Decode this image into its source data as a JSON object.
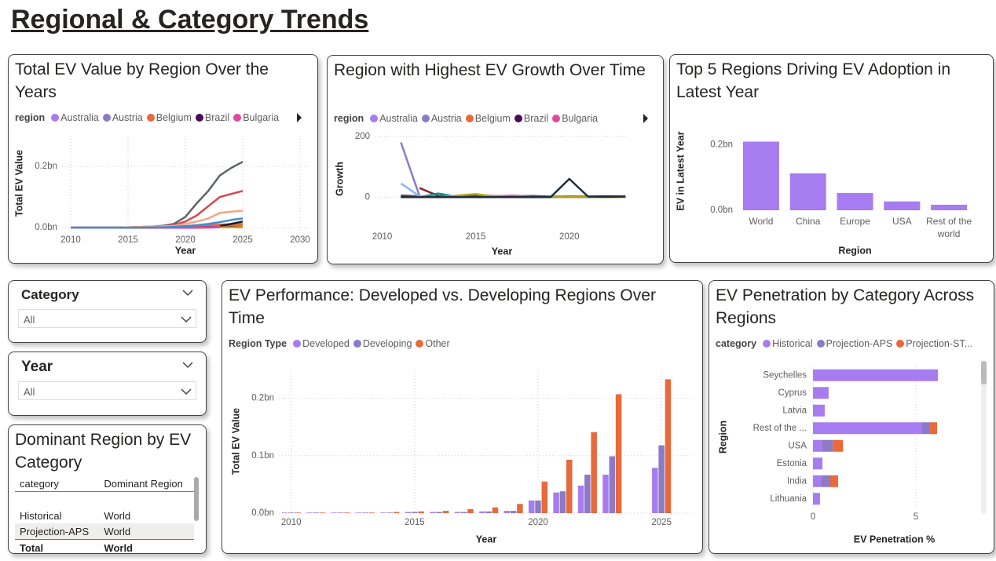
{
  "title": "Regional & Category Trends",
  "chart_data": [
    {
      "type": "line",
      "title": "Total EV Value by Region Over the Years",
      "legend_title": "region",
      "x_label": "Year",
      "y_label": "Total EV Value",
      "x": [
        2010,
        2011,
        2012,
        2013,
        2014,
        2015,
        2016,
        2017,
        2018,
        2019,
        2020,
        2021,
        2022,
        2023,
        2024,
        2025
      ],
      "xlim": [
        2009.25,
        2030.75
      ],
      "xticks": [
        2010,
        2015,
        2020,
        2025,
        2030
      ],
      "ylim": [
        -0.01,
        0.3
      ],
      "yticks": [
        {
          "value": 0,
          "label": "0.0bn"
        },
        {
          "value": 0.2,
          "label": "0.2bn"
        }
      ],
      "grid": true,
      "series": [
        {
          "name": "Australia",
          "color": "#a77cf0",
          "values": [
            0,
            0,
            0,
            0,
            0,
            0,
            0,
            0,
            0,
            0.001,
            0.002,
            0.003,
            0.004,
            0.005,
            0.006,
            0.007
          ]
        },
        {
          "name": "Austria",
          "color": "#8d7ac4",
          "values": [
            0,
            0,
            0,
            0,
            0,
            0,
            0,
            0,
            0.001,
            0.001,
            0.002,
            0.003,
            0.004,
            0.005,
            0.005,
            0.006
          ]
        },
        {
          "name": "Belgium",
          "color": "#e8693a",
          "values": [
            0,
            0,
            0,
            0,
            0,
            0,
            0,
            0,
            0.001,
            0.001,
            0.003,
            0.005,
            0.008,
            0.01,
            0.011,
            0.012
          ]
        },
        {
          "name": "Brazil",
          "color": "#4b0a5e",
          "values": [
            0,
            0,
            0,
            0,
            0,
            0,
            0,
            0,
            0,
            0,
            0,
            0,
            0.001,
            0.001,
            0.002,
            0.002
          ]
        },
        {
          "name": "Bulgaria",
          "color": "#e0479e",
          "values": [
            0,
            0,
            0,
            0,
            0,
            0,
            0,
            0,
            0,
            0,
            0,
            0,
            0,
            0.001,
            0.001,
            0.001
          ]
        },
        {
          "color": "#5f6368",
          "values": [
            0,
            0,
            0,
            0,
            0,
            0.001,
            0.002,
            0.003,
            0.006,
            0.012,
            0.035,
            0.08,
            0.12,
            0.17,
            0.195,
            0.215
          ]
        },
        {
          "color": "#d64550",
          "values": [
            0,
            0,
            0,
            0,
            0,
            0.001,
            0.002,
            0.003,
            0.005,
            0.008,
            0.02,
            0.04,
            0.07,
            0.1,
            0.11,
            0.12
          ]
        },
        {
          "color": "#f4a582",
          "values": [
            0,
            0,
            0,
            0,
            0,
            0.001,
            0.002,
            0.003,
            0.004,
            0.006,
            0.012,
            0.02,
            0.03,
            0.048,
            0.052,
            0.055
          ]
        },
        {
          "color": "#3b8fd6",
          "values": [
            0,
            0,
            0,
            0,
            0,
            0,
            0,
            0.001,
            0.001,
            0.002,
            0.005,
            0.008,
            0.012,
            0.018,
            0.025,
            0.03
          ]
        },
        {
          "color": "#1a1a2e",
          "values": [
            null,
            null,
            null,
            null,
            null,
            null,
            null,
            null,
            null,
            null,
            null,
            null,
            null,
            0.005,
            0.012,
            0.02
          ]
        },
        {
          "color": "#d4a017",
          "values": [
            null,
            null,
            null,
            null,
            null,
            null,
            null,
            null,
            null,
            null,
            null,
            null,
            null,
            0.001,
            0.001,
            0.002
          ]
        }
      ]
    },
    {
      "type": "line",
      "title": "Region with Highest EV Growth Over Time",
      "legend_title": "region",
      "x_label": "Year",
      "y_label": "Growth",
      "x": [
        2011,
        2012,
        2013,
        2014,
        2015,
        2016,
        2017,
        2018,
        2019,
        2020,
        2021,
        2022,
        2023
      ],
      "xlim": [
        2009.6,
        2023.2
      ],
      "xticks": [
        2010,
        2015,
        2020
      ],
      "ylim": [
        -100,
        220
      ],
      "yticks": [
        0,
        200
      ],
      "grid": true,
      "series": [
        {
          "name": "Australia",
          "color": "#a77cf0",
          "values": [
            2,
            1,
            1,
            2,
            3,
            2,
            1,
            2,
            1,
            2,
            1,
            1,
            2
          ]
        },
        {
          "name": "Austria",
          "color": "#8d7ac4",
          "values": [
            180,
            3,
            1,
            2,
            1,
            0,
            1,
            1,
            0,
            1,
            0,
            1,
            0
          ]
        },
        {
          "name": "Belgium",
          "color": "#e8693a",
          "values": [
            0,
            1,
            2,
            3,
            8,
            4,
            2,
            1,
            1,
            3,
            2,
            1,
            3
          ]
        },
        {
          "name": "Brazil",
          "color": "#4b0a5e",
          "values": [
            5,
            3,
            2,
            4,
            6,
            2,
            3,
            4,
            2,
            1,
            2,
            3,
            2
          ]
        },
        {
          "name": "Bulgaria",
          "color": "#e0479e",
          "values": [
            1,
            2,
            1,
            1,
            2,
            3,
            5,
            2,
            1,
            1,
            2,
            1,
            1
          ]
        },
        {
          "color": "#8fb3f0",
          "values": [
            45,
            3,
            2,
            1,
            1,
            0,
            1,
            0,
            1,
            0,
            1,
            0,
            1
          ]
        },
        {
          "color": "#8b1e2d",
          "values": [
            null,
            30,
            4,
            2,
            1,
            1,
            0,
            1,
            1,
            0,
            1,
            2,
            1
          ]
        },
        {
          "color": "#1a8a8a",
          "values": [
            0,
            0,
            12,
            1,
            0,
            1,
            0,
            1,
            0,
            1,
            0,
            0,
            1
          ]
        },
        {
          "color": "#b0a020",
          "values": [
            0,
            0,
            0,
            5,
            10,
            2,
            1,
            0,
            1,
            0,
            1,
            0,
            0
          ]
        },
        {
          "color": "#1f2d3a",
          "values": [
            0,
            0,
            0,
            0,
            0,
            0,
            0,
            0,
            0,
            60,
            2,
            1,
            2
          ]
        }
      ]
    },
    {
      "type": "bar",
      "title": "Top 5 Regions Driving EV Adoption in Latest Year",
      "x_label": "Region",
      "y_label": "EV in Latest Year",
      "categories": [
        "World",
        "China",
        "Europe",
        "USA",
        "Rest of the world"
      ],
      "values": [
        0.21,
        0.113,
        0.053,
        0.027,
        0.017
      ],
      "color": "#a77cf0",
      "ylim": [
        0,
        0.24
      ],
      "yticks": [
        {
          "value": 0,
          "label": "0.0bn"
        },
        {
          "value": 0.2,
          "label": "0.2bn"
        }
      ],
      "grid": false
    },
    {
      "type": "bar",
      "title": "EV Performance: Developed vs. Developing Regions Over Time",
      "legend_title": "Region Type",
      "x_label": "Year",
      "y_label": "Total EV Value",
      "x": [
        2010,
        2011,
        2012,
        2013,
        2014,
        2015,
        2016,
        2017,
        2018,
        2019,
        2020,
        2021,
        2022,
        2023,
        2025
      ],
      "xlim": [
        2009.5,
        2026.3
      ],
      "xticks": [
        2010,
        2015,
        2020,
        2025
      ],
      "ylim": [
        0,
        0.25
      ],
      "yticks": [
        {
          "value": 0,
          "label": "0.0bn"
        },
        {
          "value": 0.1,
          "label": "0.1bn"
        },
        {
          "value": 0.2,
          "label": "0.2bn"
        }
      ],
      "grid": true,
      "series": [
        {
          "name": "Developed",
          "color": "#a77cf0",
          "values": [
            0.001,
            0.001,
            0.001,
            0.001,
            0.001,
            0.002,
            0.002,
            0.002,
            0.003,
            0.004,
            0.022,
            0.036,
            0.048,
            0.067,
            0.079
          ]
        },
        {
          "name": "Developing",
          "color": "#8d7ac4",
          "values": [
            0.001,
            0.001,
            0.001,
            0.001,
            0.001,
            0.002,
            0.002,
            0.002,
            0.003,
            0.004,
            0.022,
            0.038,
            0.067,
            0.099,
            0.118
          ]
        },
        {
          "name": "Other",
          "color": "#e8693a",
          "values": [
            0.001,
            0.001,
            0.001,
            0.001,
            0.002,
            0.003,
            0.004,
            0.007,
            0.01,
            0.016,
            0.055,
            0.093,
            0.141,
            0.207,
            0.233
          ]
        }
      ]
    },
    {
      "type": "hbar",
      "title": "EV Penetration by Category Across Regions",
      "legend_title": "category",
      "x_label": "EV Penetration %",
      "y_label": "Region",
      "categories": [
        "Seychelles",
        "Cyprus",
        "Latvia",
        "Rest of the ...",
        "USA",
        "Estonia",
        "India",
        "Lithuania"
      ],
      "xlim": [
        0,
        7.9
      ],
      "xticks": [
        0,
        5
      ],
      "grid": true,
      "series": [
        {
          "name": "Historical",
          "color": "#a77cf0",
          "values": [
            6.07,
            0.76,
            0.57,
            5.27,
            0.46,
            0.46,
            0.42,
            0.34
          ]
        },
        {
          "name": "Projection-APS",
          "color": "#8d7ac4",
          "values": [
            0,
            0,
            0,
            0.38,
            0.5,
            0,
            0.42,
            0
          ]
        },
        {
          "name": "Projection-ST...",
          "color": "#e8693a",
          "values": [
            0,
            0,
            0,
            0.38,
            0.5,
            0,
            0.38,
            0
          ]
        }
      ]
    }
  ],
  "slicers": [
    {
      "title": "Category",
      "value": "All"
    },
    {
      "title": "Year",
      "value": "All"
    }
  ],
  "table": {
    "title": "Dominant Region by EV Category",
    "columns": [
      "category",
      "Dominant Region"
    ],
    "rows": [
      [
        "Historical",
        "World"
      ],
      [
        "Projection-APS",
        "World"
      ]
    ],
    "total": [
      "Total",
      "World"
    ]
  }
}
